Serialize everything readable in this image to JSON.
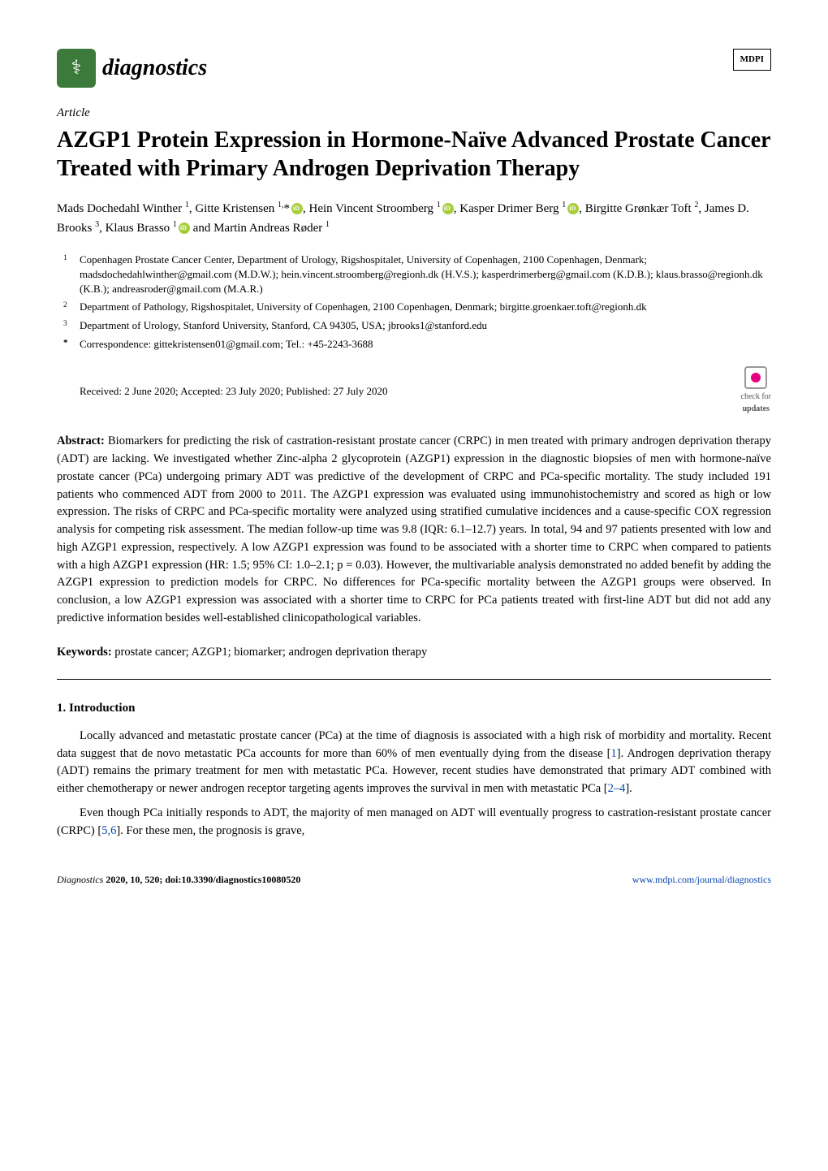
{
  "journal": {
    "name": "diagnostics",
    "icon_glyph": "⚕"
  },
  "publisher": {
    "name": "MDPI"
  },
  "article_type": "Article",
  "title": "AZGP1 Protein Expression in Hormone-Naïve Advanced Prostate Cancer Treated with Primary Androgen Deprivation Therapy",
  "authors_html": "Mads Dochedahl Winther <sup>1</sup>, Gitte Kristensen <sup>1,</sup>*{ORCID}, Hein Vincent Stroomberg <sup>1</sup>{ORCID}, Kasper Drimer Berg <sup>1</sup>{ORCID}, Birgitte Grønkær Toft <sup>2</sup>, James D. Brooks <sup>3</sup>, Klaus Brasso <sup>1</sup>{ORCID} and Martin Andreas Røder <sup>1</sup>",
  "affiliations": [
    {
      "num": "1",
      "text": "Copenhagen Prostate Cancer Center, Department of Urology, Rigshospitalet, University of Copenhagen, 2100 Copenhagen, Denmark; madsdochedahlwinther@gmail.com (M.D.W.); hein.vincent.stroomberg@regionh.dk (H.V.S.); kasperdrimerberg@gmail.com (K.D.B.); klaus.brasso@regionh.dk (K.B.); andreasroder@gmail.com (M.A.R.)"
    },
    {
      "num": "2",
      "text": "Department of Pathology, Rigshospitalet, University of Copenhagen, 2100 Copenhagen, Denmark; birgitte.groenkaer.toft@regionh.dk"
    },
    {
      "num": "3",
      "text": "Department of Urology, Stanford University, Stanford, CA 94305, USA; jbrooks1@stanford.edu"
    }
  ],
  "correspondence": {
    "symbol": "*",
    "text": "Correspondence: gittekristensen01@gmail.com; Tel.: +45-2243-3688"
  },
  "dates": "Received: 2 June 2020; Accepted: 23 July 2020; Published: 27 July 2020",
  "check_updates_label": "check for",
  "check_updates_label2": "updates",
  "abstract": {
    "label": "Abstract:",
    "text": "Biomarkers for predicting the risk of castration-resistant prostate cancer (CRPC) in men treated with primary androgen deprivation therapy (ADT) are lacking. We investigated whether Zinc-alpha 2 glycoprotein (AZGP1) expression in the diagnostic biopsies of men with hormone-naïve prostate cancer (PCa) undergoing primary ADT was predictive of the development of CRPC and PCa-specific mortality. The study included 191 patients who commenced ADT from 2000 to 2011. The AZGP1 expression was evaluated using immunohistochemistry and scored as high or low expression. The risks of CRPC and PCa-specific mortality were analyzed using stratified cumulative incidences and a cause-specific COX regression analysis for competing risk assessment. The median follow-up time was 9.8 (IQR: 6.1–12.7) years. In total, 94 and 97 patients presented with low and high AZGP1 expression, respectively. A low AZGP1 expression was found to be associated with a shorter time to CRPC when compared to patients with a high AZGP1 expression (HR: 1.5; 95% CI: 1.0–2.1; p = 0.03). However, the multivariable analysis demonstrated no added benefit by adding the AZGP1 expression to prediction models for CRPC. No differences for PCa-specific mortality between the AZGP1 groups were observed. In conclusion, a low AZGP1 expression was associated with a shorter time to CRPC for PCa patients treated with first-line ADT but did not add any predictive information besides well-established clinicopathological variables."
  },
  "keywords": {
    "label": "Keywords:",
    "text": "prostate cancer; AZGP1; biomarker; androgen deprivation therapy"
  },
  "section1": {
    "heading": "1. Introduction",
    "para1": "Locally advanced and metastatic prostate cancer (PCa) at the time of diagnosis is associated with a high risk of morbidity and mortality. Recent data suggest that de novo metastatic PCa accounts for more than 60% of men eventually dying from the disease [1]. Androgen deprivation therapy (ADT) remains the primary treatment for men with metastatic PCa. However, recent studies have demonstrated that primary ADT combined with either chemotherapy or newer androgen receptor targeting agents improves the survival in men with metastatic PCa [2–4].",
    "para2": "Even though PCa initially responds to ADT, the majority of men managed on ADT will eventually progress to castration-resistant prostate cancer (CRPC) [5,6]. For these men, the prognosis is grave,"
  },
  "footer": {
    "left_italic": "Diagnostics",
    "left_rest": " 2020, 10, 520; doi:10.3390/diagnostics10080520",
    "right": "www.mdpi.com/journal/diagnostics"
  },
  "colors": {
    "journal_badge_bg": "#3b7a3b",
    "orcid_bg": "#a6ce39",
    "link_color": "#0645ad",
    "check_pink": "#e6007e",
    "text": "#000000",
    "bg": "#ffffff"
  },
  "typography": {
    "body_font": "Palatino",
    "title_size_pt": 21,
    "body_size_pt": 11,
    "journal_name_size_pt": 21
  }
}
